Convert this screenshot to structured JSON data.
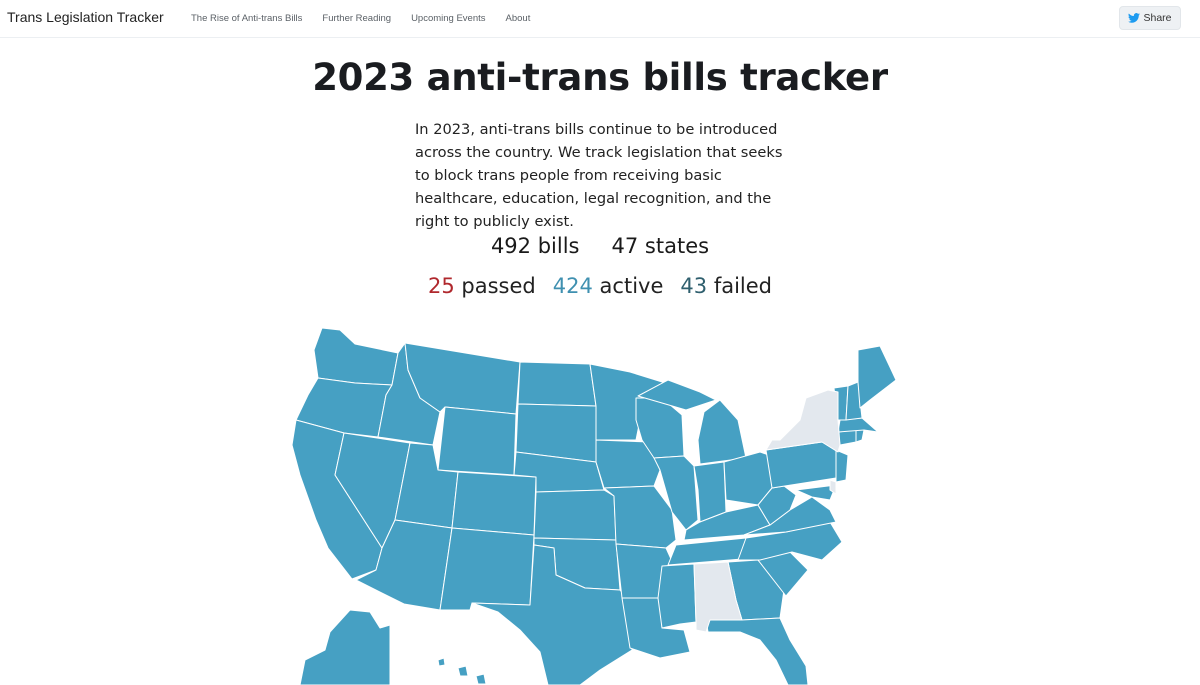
{
  "nav": {
    "brand": "Trans Legislation Tracker",
    "links": [
      "The Rise of Anti-trans Bills",
      "Further Reading",
      "Upcoming Events",
      "About"
    ],
    "share_label": "Share",
    "share_icon": "twitter-bird-icon"
  },
  "header": {
    "title": "2023 anti-trans bills tracker",
    "intro": "In 2023, anti-trans bills continue to be introduced across the country. We track legislation that seeks to block trans people from receiving basic healthcare, education, legal recognition, and the right to publicly exist."
  },
  "totals": {
    "bills": "492",
    "bills_label": "bills",
    "states": "47",
    "states_label": "states"
  },
  "status": {
    "passed_count": "25",
    "passed_label": "passed",
    "active_count": "424",
    "active_label": "active",
    "failed_count": "43",
    "failed_label": "failed"
  },
  "colors": {
    "with_bills": "#46a0c3",
    "without_bills": "#e3e8ee",
    "border": "#ffffff",
    "passed": "#b0282d",
    "active": "#3f90b0",
    "failed": "#2f5f6e"
  },
  "map": {
    "states_without_bills": [
      "New York",
      "Alabama",
      "Delaware"
    ]
  }
}
